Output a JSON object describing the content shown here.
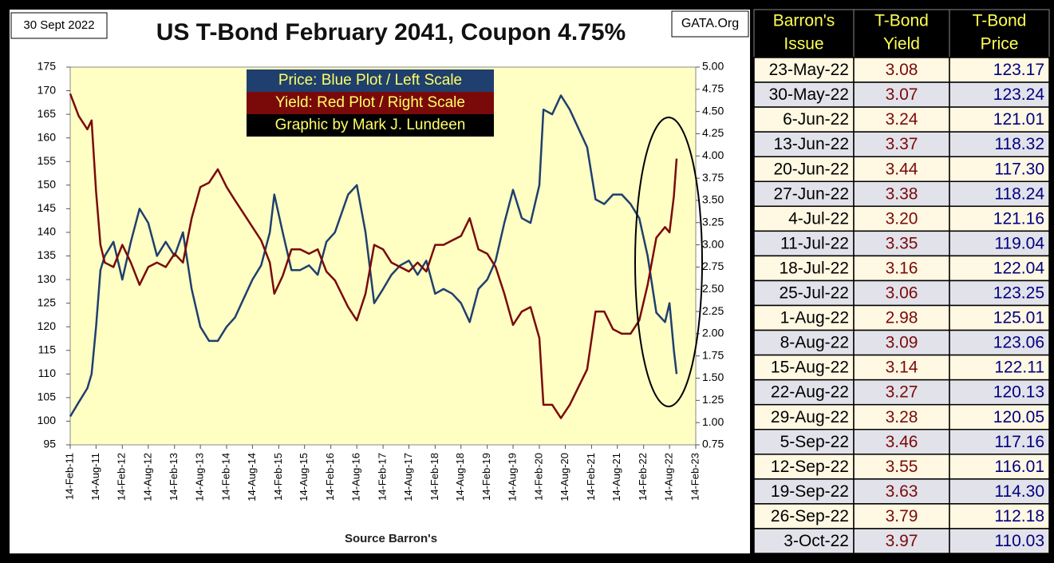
{
  "chart_data": {
    "type": "line",
    "date_stamp": "30 Sept 2022",
    "title": "US T-Bond February 2041, Coupon 4.75%",
    "source_badge": "GATA.Org",
    "credit": "Graphic by Mark J. Lundeen",
    "x_label": "Source Barron's",
    "x": [
      "2011-02-14",
      "2011-04-14",
      "2011-06-14",
      "2011-07-14",
      "2011-08-14",
      "2011-09-14",
      "2011-10-14",
      "2011-12-14",
      "2012-02-14",
      "2012-04-14",
      "2012-06-14",
      "2012-08-14",
      "2012-10-14",
      "2012-12-14",
      "2013-02-14",
      "2013-04-14",
      "2013-06-14",
      "2013-08-14",
      "2013-10-14",
      "2013-12-14",
      "2014-02-14",
      "2014-04-14",
      "2014-06-14",
      "2014-08-14",
      "2014-10-14",
      "2014-12-14",
      "2015-01-14",
      "2015-03-14",
      "2015-05-14",
      "2015-07-14",
      "2015-09-14",
      "2015-11-14",
      "2016-01-14",
      "2016-03-14",
      "2016-06-14",
      "2016-08-14",
      "2016-10-14",
      "2016-12-14",
      "2017-02-14",
      "2017-04-14",
      "2017-06-14",
      "2017-08-14",
      "2017-10-14",
      "2017-12-14",
      "2018-02-14",
      "2018-04-14",
      "2018-06-14",
      "2018-08-14",
      "2018-10-14",
      "2018-12-14",
      "2019-02-14",
      "2019-04-14",
      "2019-06-14",
      "2019-08-14",
      "2019-10-14",
      "2019-12-14",
      "2020-02-14",
      "2020-03-14",
      "2020-05-14",
      "2020-07-14",
      "2020-09-14",
      "2020-11-14",
      "2021-01-14",
      "2021-03-14",
      "2021-05-14",
      "2021-07-14",
      "2021-09-14",
      "2021-11-14",
      "2022-01-14",
      "2022-03-14",
      "2022-05-14",
      "2022-07-14",
      "2022-08-14",
      "2022-09-14",
      "2022-10-03"
    ],
    "series": [
      {
        "name": "Price:  Blue Plot / Left Scale",
        "color": "#1f3f6e",
        "axis": "y",
        "values": [
          101,
          104,
          107,
          110,
          120,
          132,
          135,
          138,
          130,
          138,
          145,
          142,
          135,
          138,
          135,
          140,
          128,
          120,
          117,
          117,
          120,
          122,
          126,
          130,
          133,
          140,
          148,
          140,
          132,
          132,
          133,
          131,
          138,
          140,
          148,
          150,
          140,
          125,
          128,
          131,
          133,
          134,
          131,
          134,
          127,
          128,
          127,
          125,
          121,
          128,
          130,
          134,
          142,
          149,
          143,
          142,
          150,
          166,
          165,
          169,
          166,
          162,
          158,
          147,
          146,
          148,
          148,
          146,
          143,
          135,
          123,
          121,
          125,
          115,
          110
        ]
      },
      {
        "name": "Yield:  Red Plot / Right Scale",
        "color": "#7a0a0a",
        "axis": "y2",
        "values": [
          4.7,
          4.45,
          4.3,
          4.4,
          3.6,
          3.0,
          2.8,
          2.75,
          3.0,
          2.8,
          2.55,
          2.75,
          2.8,
          2.75,
          2.9,
          2.8,
          3.3,
          3.65,
          3.7,
          3.85,
          3.65,
          3.5,
          3.35,
          3.2,
          3.05,
          2.8,
          2.45,
          2.65,
          2.95,
          2.95,
          2.9,
          2.95,
          2.7,
          2.6,
          2.3,
          2.15,
          2.45,
          3.0,
          2.95,
          2.8,
          2.75,
          2.7,
          2.8,
          2.7,
          3.0,
          3.0,
          3.05,
          3.1,
          3.3,
          2.95,
          2.9,
          2.75,
          2.45,
          2.1,
          2.25,
          2.3,
          1.95,
          1.2,
          1.2,
          1.05,
          1.2,
          1.4,
          1.6,
          2.25,
          2.25,
          2.05,
          2.0,
          2.0,
          2.15,
          2.55,
          3.08,
          3.2,
          3.14,
          3.55,
          3.97
        ]
      }
    ],
    "xlim": [
      "2011-02-14",
      "2023-02-14"
    ],
    "xticks": [
      {
        "value": "2011-02-14",
        "label": "14-Feb-11"
      },
      {
        "value": "2011-08-14",
        "label": "14-Aug-11"
      },
      {
        "value": "2012-02-14",
        "label": "14-Feb-12"
      },
      {
        "value": "2012-08-14",
        "label": "14-Aug-12"
      },
      {
        "value": "2013-02-14",
        "label": "14-Feb-13"
      },
      {
        "value": "2013-08-14",
        "label": "14-Aug-13"
      },
      {
        "value": "2014-02-14",
        "label": "14-Feb-14"
      },
      {
        "value": "2014-08-14",
        "label": "14-Aug-14"
      },
      {
        "value": "2015-02-14",
        "label": "14-Feb-15"
      },
      {
        "value": "2015-08-14",
        "label": "14-Aug-15"
      },
      {
        "value": "2016-02-14",
        "label": "14-Feb-16"
      },
      {
        "value": "2016-08-14",
        "label": "14-Aug-16"
      },
      {
        "value": "2017-02-14",
        "label": "14-Feb-17"
      },
      {
        "value": "2017-08-14",
        "label": "14-Aug-17"
      },
      {
        "value": "2018-02-14",
        "label": "14-Feb-18"
      },
      {
        "value": "2018-08-14",
        "label": "14-Aug-18"
      },
      {
        "value": "2019-02-14",
        "label": "14-Feb-19"
      },
      {
        "value": "2019-08-14",
        "label": "14-Aug-19"
      },
      {
        "value": "2020-02-14",
        "label": "14-Feb-20"
      },
      {
        "value": "2020-08-14",
        "label": "14-Aug-20"
      },
      {
        "value": "2021-02-14",
        "label": "14-Feb-21"
      },
      {
        "value": "2021-08-14",
        "label": "14-Aug-21"
      },
      {
        "value": "2022-02-14",
        "label": "14-Feb-22"
      },
      {
        "value": "2022-08-14",
        "label": "14-Aug-22"
      },
      {
        "value": "2023-02-14",
        "label": "14-Feb-23"
      }
    ],
    "ylim": [
      95,
      175
    ],
    "yticks": [
      95,
      100,
      105,
      110,
      115,
      120,
      125,
      130,
      135,
      140,
      145,
      150,
      155,
      160,
      165,
      170,
      175
    ],
    "y2lim": [
      0.75,
      5.0
    ],
    "y2ticks": [
      0.75,
      {
        "value": 1,
        "label": "1.00"
      },
      1.25,
      {
        "value": 1.5,
        "label": "1.50"
      },
      1.75,
      {
        "value": 2,
        "label": "2.00"
      },
      2.25,
      {
        "value": 2.5,
        "label": "2.50"
      },
      2.75,
      {
        "value": 3,
        "label": "3.00"
      },
      3.25,
      {
        "value": 3.5,
        "label": "3.50"
      },
      3.75,
      {
        "value": 4,
        "label": "4.00"
      },
      4.25,
      {
        "value": 4.5,
        "label": "4.50"
      },
      4.75,
      {
        "value": 5,
        "label": "5.00"
      }
    ],
    "grid": false
  },
  "table": {
    "header": [
      [
        "Barron's",
        "Issue"
      ],
      [
        "T-Bond",
        "Yield"
      ],
      [
        "T-Bond",
        "Price"
      ]
    ],
    "rows": [
      [
        "23-May-22",
        "3.08",
        "123.17"
      ],
      [
        "30-May-22",
        "3.07",
        "123.24"
      ],
      [
        "6-Jun-22",
        "3.24",
        "121.01"
      ],
      [
        "13-Jun-22",
        "3.37",
        "118.32"
      ],
      [
        "20-Jun-22",
        "3.44",
        "117.30"
      ],
      [
        "27-Jun-22",
        "3.38",
        "118.24"
      ],
      [
        "4-Jul-22",
        "3.20",
        "121.16"
      ],
      [
        "11-Jul-22",
        "3.35",
        "119.04"
      ],
      [
        "18-Jul-22",
        "3.16",
        "122.04"
      ],
      [
        "25-Jul-22",
        "3.06",
        "123.25"
      ],
      [
        "1-Aug-22",
        "2.98",
        "125.01"
      ],
      [
        "8-Aug-22",
        "3.09",
        "123.06"
      ],
      [
        "15-Aug-22",
        "3.14",
        "122.11"
      ],
      [
        "22-Aug-22",
        "3.27",
        "120.13"
      ],
      [
        "29-Aug-22",
        "3.28",
        "120.05"
      ],
      [
        "5-Sep-22",
        "3.46",
        "117.16"
      ],
      [
        "12-Sep-22",
        "3.55",
        "116.01"
      ],
      [
        "19-Sep-22",
        "3.63",
        "114.30"
      ],
      [
        "26-Sep-22",
        "3.79",
        "112.18"
      ],
      [
        "3-Oct-22",
        "3.97",
        "110.03"
      ]
    ]
  }
}
